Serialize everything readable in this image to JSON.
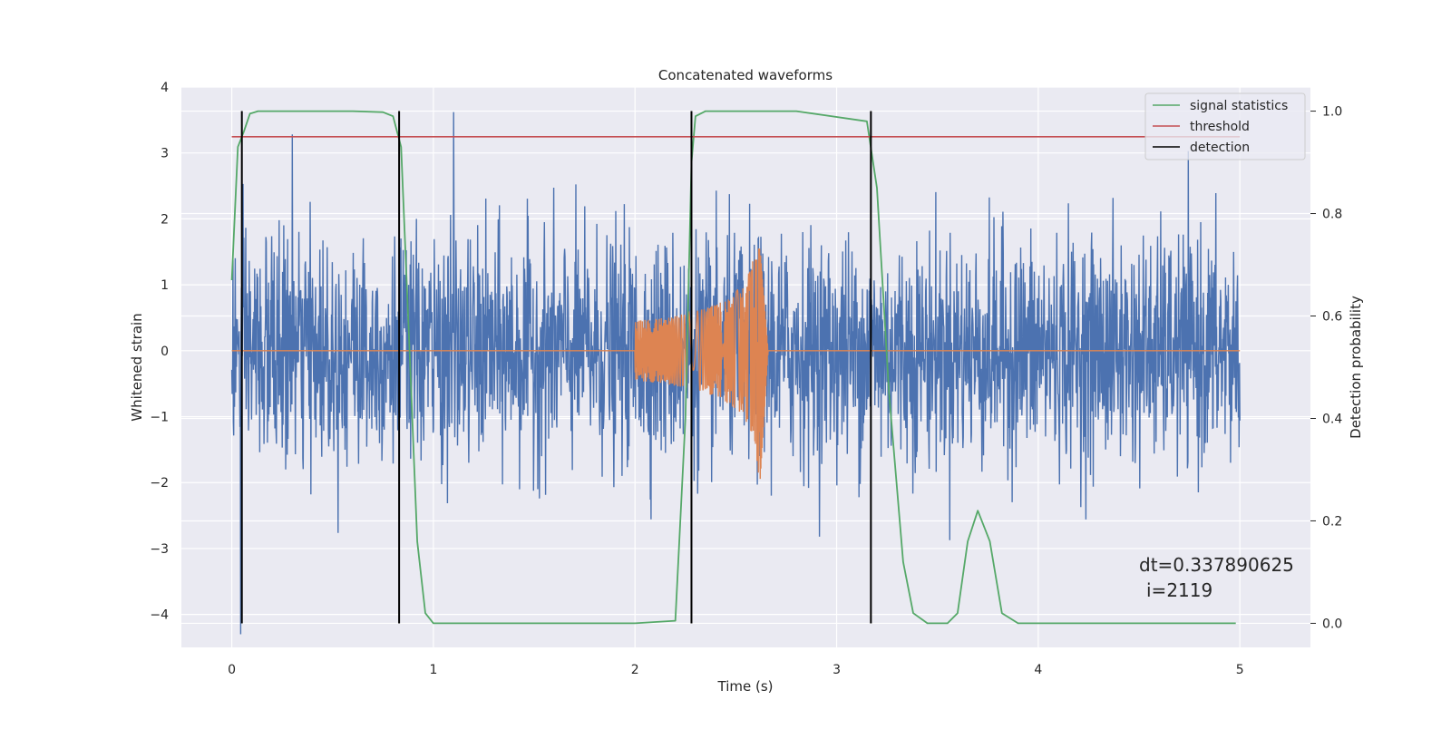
{
  "chart_data": {
    "type": "line",
    "title": "Concatenated waveforms",
    "xlabel": "Time (s)",
    "ylabel": "Whitened strain",
    "y2label": "Detection probability",
    "xlim": [
      -0.25,
      5.35
    ],
    "ylim": [
      -4.5,
      4.0
    ],
    "y2lim": [
      -0.047,
      1.047
    ],
    "xticks": [
      0,
      1,
      2,
      3,
      4,
      5
    ],
    "yticks": [
      -4,
      -3,
      -2,
      -1,
      0,
      1,
      2,
      3,
      4
    ],
    "y2ticks": [
      0.0,
      0.2,
      0.4,
      0.6,
      0.8,
      1.0
    ],
    "y2ticklabels": [
      "0.0",
      "0.2",
      "0.4",
      "0.6",
      "0.8",
      "1.0"
    ],
    "grid": true,
    "legend_position": "top-right",
    "legend": [
      {
        "label": "signal statistics",
        "color": "#55a868"
      },
      {
        "label": "threshold",
        "color": "#c44e52"
      },
      {
        "label": "detection",
        "color": "#000000"
      }
    ],
    "annotation": {
      "line1": "dt=0.337890625",
      "line2": "i=2119"
    },
    "colors": {
      "strain": "#4c72b0",
      "template": "#dd8452",
      "statistics": "#55a868",
      "threshold": "#c44e52",
      "detection": "#000000",
      "background": "#eaeaf2",
      "grid": "#ffffff"
    },
    "series": [
      {
        "kind": "noise",
        "axis": "left",
        "x_range": [
          0,
          5
        ],
        "rms": 0.85,
        "extremes": {
          "max": 3.62,
          "min": -4.3
        },
        "color": "#4c72b0"
      },
      {
        "kind": "chirp",
        "axis": "left",
        "x_range": [
          0,
          5
        ],
        "chirp_start": 2.0,
        "merger": 2.62,
        "ringdown_end": 2.66,
        "amplitude_start": 0.45,
        "peak_max": 1.55,
        "peak_min": -2.0,
        "color": "#dd8452"
      },
      {
        "name": "signal statistics",
        "axis": "right",
        "color": "#55a868",
        "x": [
          0.0,
          0.03,
          0.06,
          0.09,
          0.13,
          0.2,
          0.4,
          0.6,
          0.75,
          0.8,
          0.84,
          0.88,
          0.92,
          0.96,
          1.0,
          1.2,
          2.0,
          2.2,
          2.25,
          2.28,
          2.3,
          2.35,
          2.4,
          2.6,
          2.8,
          3.15,
          3.2,
          3.26,
          3.33,
          3.38,
          3.45,
          3.55,
          3.6,
          3.65,
          3.7,
          3.76,
          3.82,
          3.9,
          4.2,
          4.98
        ],
        "y": [
          0.67,
          0.93,
          0.96,
          0.995,
          1.0,
          1.0,
          1.0,
          1.0,
          0.998,
          0.99,
          0.93,
          0.55,
          0.16,
          0.02,
          0.0,
          0.0,
          0.0,
          0.005,
          0.4,
          0.9,
          0.99,
          1.0,
          1.0,
          1.0,
          1.0,
          0.98,
          0.85,
          0.45,
          0.12,
          0.02,
          0.0,
          0.0,
          0.02,
          0.16,
          0.22,
          0.16,
          0.02,
          0.0,
          0.0,
          0.0
        ]
      },
      {
        "name": "threshold",
        "axis": "right",
        "color": "#c44e52",
        "x": [
          0.0,
          5.0
        ],
        "y": [
          0.95,
          0.95
        ]
      },
      {
        "name": "detection",
        "axis": "right",
        "color": "#000000",
        "x": [
          0.05,
          0.83,
          2.28,
          3.17
        ],
        "y_range": [
          0.0,
          1.0
        ]
      }
    ]
  }
}
